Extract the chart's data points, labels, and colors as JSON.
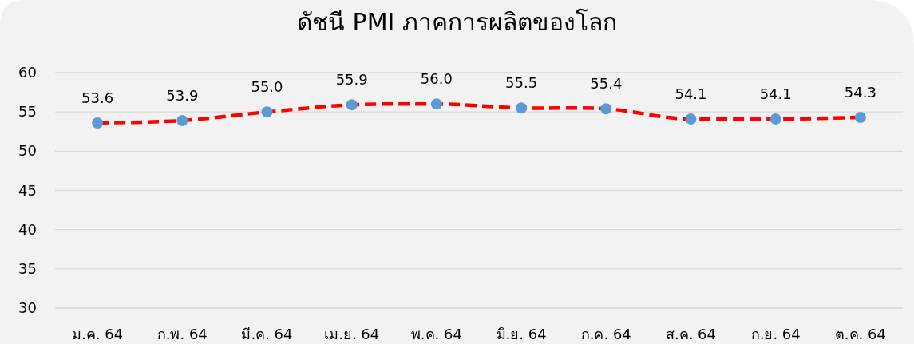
{
  "chart_data": {
    "type": "line",
    "title": "ดัชนี PMI ภาคการผลิตของโลก",
    "categories": [
      "ม.ค. 64",
      "ก.พ. 64",
      "มี.ค. 64",
      "เม.ย. 64",
      "พ.ค. 64",
      "มิ.ย. 64",
      "ก.ค. 64",
      "ส.ค. 64",
      "ก.ย. 64",
      "ต.ค. 64"
    ],
    "series": [
      {
        "color": "#ff0000",
        "colors": [
          "#5b9bd5",
          "#5b9bd5",
          "#5b9bd5",
          "#5b9bd5",
          "#5b9bd5",
          "#5b9bd5",
          "#5b9bd5",
          "#5b9bd5",
          "#5b9bd5",
          "#5b9bd5"
        ],
        "values": [
          53.6,
          53.9,
          55.0,
          55.9,
          56.0,
          55.5,
          55.4,
          54.1,
          54.1,
          54.3
        ],
        "value_labels": [
          "53.6",
          "53.9",
          "55.0",
          "55.9",
          "56.0",
          "55.5",
          "55.4",
          "54.1",
          "54.1",
          "54.3"
        ]
      }
    ],
    "ylim": [
      30,
      60
    ],
    "yticks": [
      30,
      35,
      40,
      45,
      50,
      55,
      60
    ],
    "grid": "y",
    "marker": "circle",
    "line_style": "dashed"
  }
}
